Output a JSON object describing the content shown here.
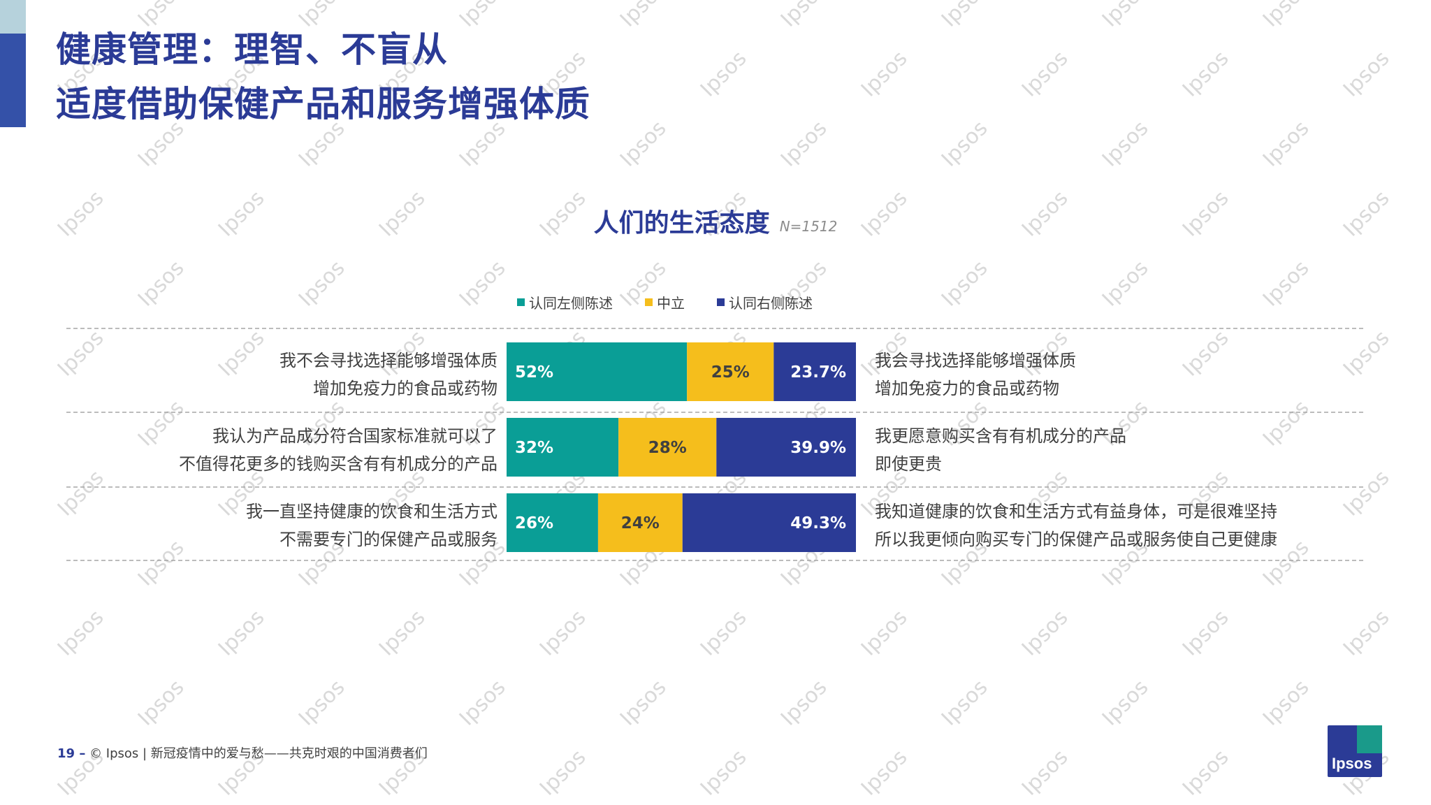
{
  "title": {
    "line1": "健康管理：理智、不盲从",
    "line2": "适度借助保健产品和服务增强体质"
  },
  "watermark_text": "Ipsos",
  "colors": {
    "agree_left": "#0a9e96",
    "neutral": "#f5be1c",
    "agree_right": "#2b3b96",
    "title": "#2b3b96",
    "accent": "#3451a8"
  },
  "chart_data": {
    "type": "bar",
    "orientation": "horizontal",
    "stacked": true,
    "title": "人们的生活态度",
    "sample_size": "N=1512",
    "legend": [
      "认同左侧陈述",
      "中立",
      "认同右侧陈述"
    ],
    "legend_position": "top",
    "categories": [
      {
        "left_statement": [
          "我不会寻找选择能够增强体质",
          "增加免疫力的食品或药物"
        ],
        "right_statement": [
          "我会寻找选择能够增强体质",
          "增加免疫力的食品或药物"
        ]
      },
      {
        "left_statement": [
          "我认为产品成分符合国家标准就可以了",
          "不值得花更多的钱购买含有有机成分的产品"
        ],
        "right_statement": [
          "我更愿意购买含有有机成分的产品",
          "即使更贵"
        ]
      },
      {
        "left_statement": [
          "我一直坚持健康的饮食和生活方式",
          "不需要专门的保健产品或服务"
        ],
        "right_statement": [
          "我知道健康的饮食和生活方式有益身体，可是很难坚持",
          "所以我更倾向购买专门的保健产品或服务使自己更健康"
        ]
      }
    ],
    "series": [
      {
        "name": "认同左侧陈述",
        "values": [
          52,
          32,
          26
        ],
        "labels": [
          "52%",
          "32%",
          "26%"
        ]
      },
      {
        "name": "中立",
        "values": [
          25,
          28,
          24
        ],
        "labels": [
          "25%",
          "28%",
          "24%"
        ]
      },
      {
        "name": "认同右侧陈述",
        "values": [
          23.7,
          39.9,
          49.3
        ],
        "labels": [
          "23.7%",
          "39.9%",
          "49.3%"
        ]
      }
    ]
  },
  "footer": {
    "page_number": "19 –",
    "source": "© Ipsos | 新冠疫情中的爱与愁——共克时艰的中国消费者们"
  },
  "logo": {
    "text": "Ipsos"
  }
}
